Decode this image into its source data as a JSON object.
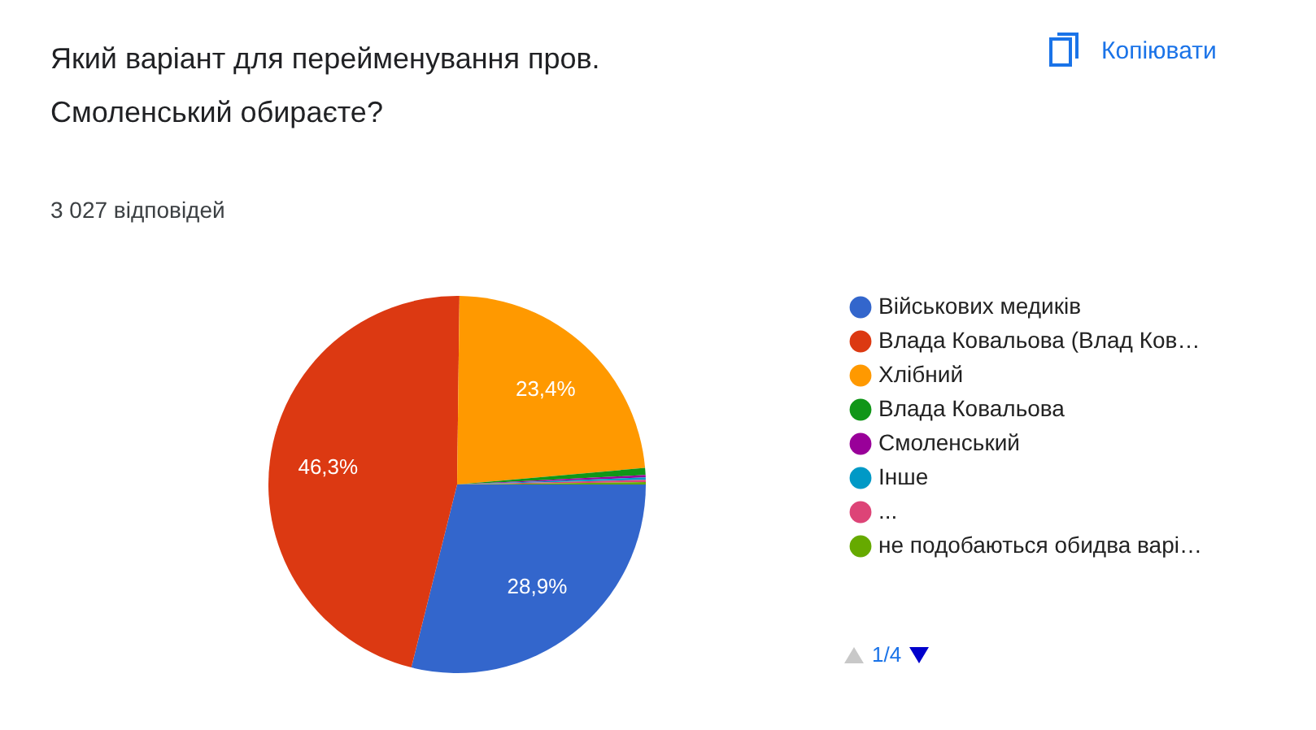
{
  "chart_data": {
    "type": "pie",
    "title": "Який варіант для перейменування пров. Смоленський  обираєте?",
    "subtitle": "3 027 відповідей",
    "categories": [
      "Військових медиків",
      "Влада Ковальова (Влад Ков…",
      "Хлібний",
      "Влада Ковальова",
      "Смоленський",
      "Інше",
      "...",
      "не подобаються обидва варі…"
    ],
    "values": [
      28.9,
      46.3,
      23.4,
      0.6,
      0.2,
      0.2,
      0.2,
      0.2
    ],
    "value_labels": [
      "28,9%",
      "46,3%",
      "23,4%",
      null,
      null,
      null,
      null,
      null
    ],
    "colors": [
      "#3366cc",
      "#dc3912",
      "#ff9900",
      "#109618",
      "#990099",
      "#0099c6",
      "#dd4477",
      "#66aa00"
    ],
    "legend": "right",
    "annotations": [
      "Копіювати",
      "1/4"
    ]
  }
}
